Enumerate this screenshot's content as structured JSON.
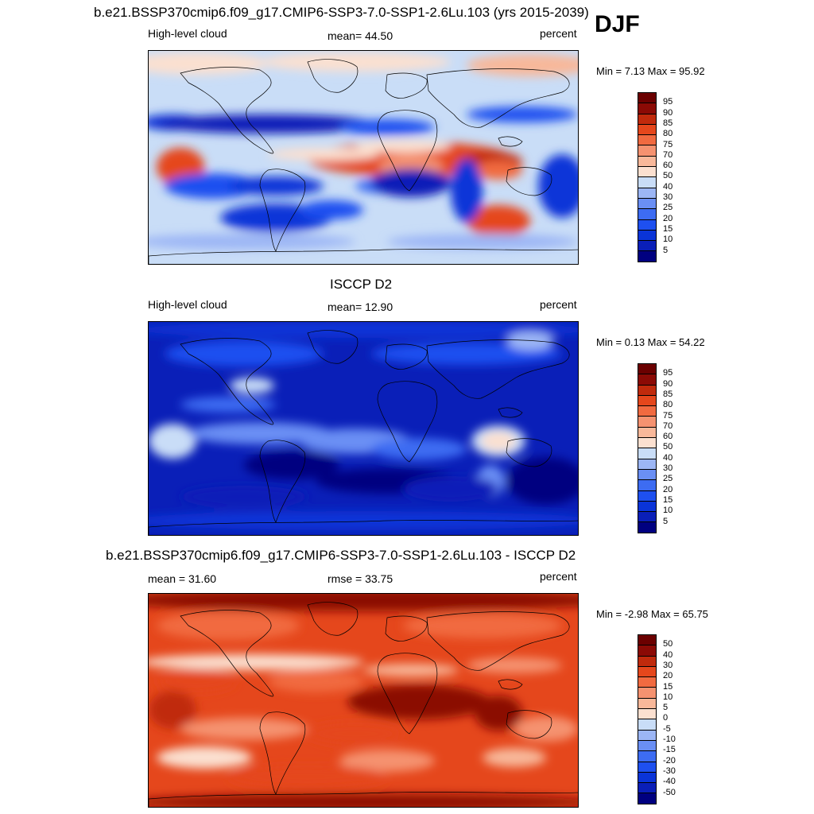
{
  "season": "DJF",
  "panels": [
    {
      "title": "b.e21.BSSP370cmip6.f09_g17.CMIP6-SSP3-7.0-SSP1-2.6Lu.103 (yrs 2015-2039)",
      "left_label": "High-level cloud",
      "center_label": "mean=  44.50",
      "right_label": "percent",
      "minmax": "Min =   7.13 Max =  95.92",
      "colorbar_labels": [
        "95",
        "90",
        "85",
        "80",
        "75",
        "70",
        "60",
        "50",
        "40",
        "30",
        "25",
        "20",
        "15",
        "10",
        "5"
      ]
    },
    {
      "title": "ISCCP D2",
      "left_label": "High-level cloud",
      "center_label": "mean=  12.90",
      "right_label": "percent",
      "minmax": "Min =   0.13 Max =  54.22",
      "colorbar_labels": [
        "95",
        "90",
        "85",
        "80",
        "75",
        "70",
        "60",
        "50",
        "40",
        "30",
        "25",
        "20",
        "15",
        "10",
        "5"
      ]
    },
    {
      "title": "b.e21.BSSP370cmip6.f09_g17.CMIP6-SSP3-7.0-SSP1-2.6Lu.103 - ISCCP D2",
      "left_label": "mean =  31.60",
      "center_label": "rmse =  33.75",
      "right_label": "percent",
      "minmax": "Min =  -2.98 Max =  65.75",
      "colorbar_labels": [
        "50",
        "40",
        "30",
        "20",
        "15",
        "10",
        "5",
        "0",
        "-5",
        "-10",
        "-15",
        "-20",
        "-30",
        "-40",
        "-50"
      ]
    }
  ],
  "colors": {
    "palette": [
      "#000080",
      "#0a1fb8",
      "#0a34d8",
      "#1e50f0",
      "#3d6cf2",
      "#6a8ff4",
      "#9cb6f5",
      "#c9ddf7",
      "#fbe0d0",
      "#f8b89a",
      "#f59270",
      "#f16a40",
      "#e5471c",
      "#c02a0c",
      "#8b0a05",
      "#6b0000"
    ],
    "coast": "#000000"
  }
}
